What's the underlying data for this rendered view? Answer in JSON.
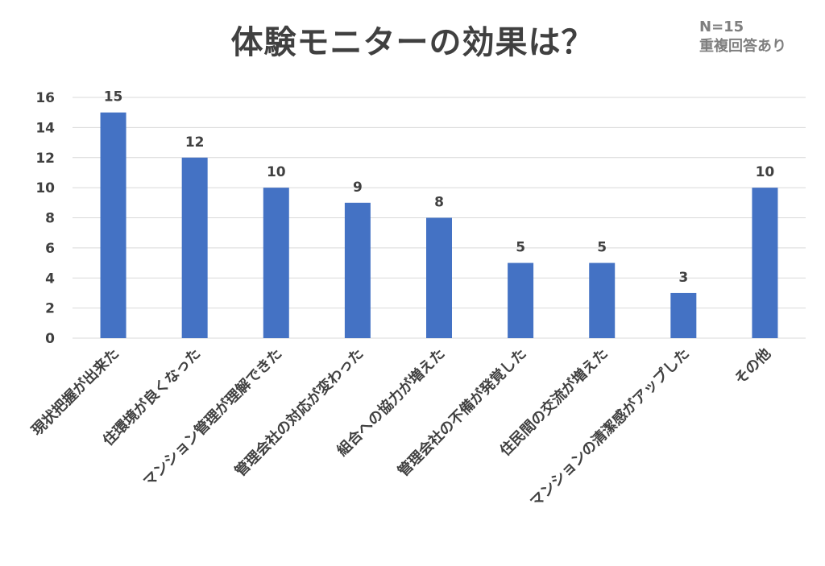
{
  "header": {
    "title": "体験モニターの効果は？",
    "sample_size": "N=15",
    "note": "重複回答あり"
  },
  "colors": {
    "bar": "#4472c4",
    "grid": "#d9d9d9",
    "text": "#404040",
    "note": "#7f7f7f"
  },
  "chart_data": {
    "type": "bar",
    "title": "体験モニターの効果は？",
    "categories": [
      "現状把握が出来た",
      "住環境が良くなった",
      "マンション管理が理解できた",
      "管理会社の対応が変わった",
      "組合への協力が増えた",
      "管理会社の不備が発覚した",
      "住民間の交流が増えた",
      "マンションの清潔感がアップした",
      "その他"
    ],
    "values": [
      15,
      12,
      10,
      9,
      8,
      5,
      5,
      3,
      10
    ],
    "data_labels": [
      "15",
      "12",
      "10",
      "9",
      "8",
      "5",
      "5",
      "3",
      "10"
    ],
    "ylim": [
      0,
      16
    ],
    "yticks": [
      "0",
      "2",
      "4",
      "6",
      "8",
      "10",
      "12",
      "14",
      "16"
    ],
    "grid": true,
    "legend": "none"
  }
}
